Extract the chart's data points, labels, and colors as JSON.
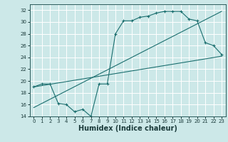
{
  "title": "",
  "xlabel": "Humidex (Indice chaleur)",
  "ylabel": "",
  "bg_color": "#cce8e8",
  "grid_color": "#ffffff",
  "line_color": "#1a6e6e",
  "xlim": [
    -0.5,
    23.5
  ],
  "ylim": [
    14,
    33
  ],
  "xticks": [
    0,
    1,
    2,
    3,
    4,
    5,
    6,
    7,
    8,
    9,
    10,
    11,
    12,
    13,
    14,
    15,
    16,
    17,
    18,
    19,
    20,
    21,
    22,
    23
  ],
  "yticks": [
    14,
    16,
    18,
    20,
    22,
    24,
    26,
    28,
    30,
    32
  ],
  "line1_x": [
    0,
    1,
    2,
    3,
    4,
    5,
    6,
    7,
    8,
    9,
    10,
    11,
    12,
    13,
    14,
    15,
    16,
    17,
    18,
    19,
    20,
    21,
    22,
    23
  ],
  "line1_y": [
    19.0,
    19.5,
    19.5,
    16.2,
    16.0,
    14.8,
    15.2,
    14.0,
    19.5,
    19.5,
    28.0,
    30.2,
    30.2,
    30.8,
    31.0,
    31.5,
    31.8,
    31.8,
    31.8,
    30.5,
    30.2,
    26.5,
    26.0,
    24.5
  ],
  "line2_x": [
    0,
    23
  ],
  "line2_y": [
    19.0,
    24.2
  ],
  "line3_x": [
    0,
    23
  ],
  "line3_y": [
    15.5,
    31.8
  ],
  "xlabel_fontsize": 7,
  "tick_fontsize": 5,
  "ylabel_fontsize": 6
}
